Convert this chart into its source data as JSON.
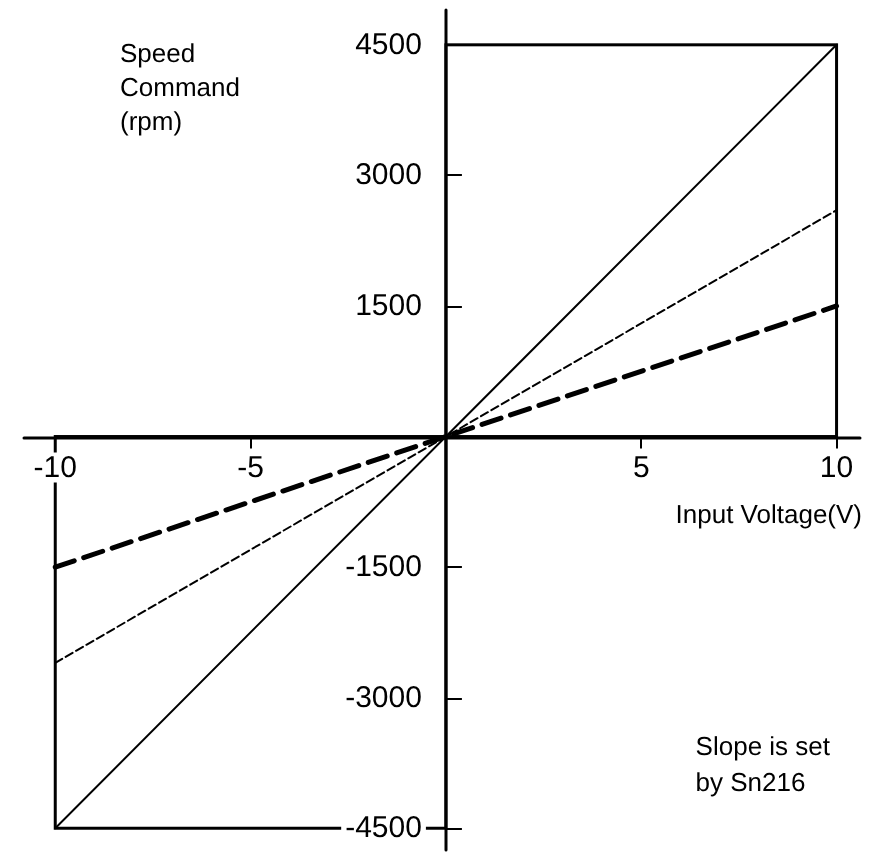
{
  "chart_data": {
    "type": "line",
    "xlabel": "Input Voltage(V)",
    "ylabel": "Speed Command (rpm)",
    "annotations": [
      "Slope is set by Sn216"
    ],
    "x": [
      -10,
      10
    ],
    "series": [
      {
        "color": "#000000",
        "values": [
          -4500,
          4500
        ],
        "line_style": "solid"
      },
      {
        "color": "#000000",
        "values": [
          -2600,
          2600
        ],
        "line_style": "dashed"
      },
      {
        "color": "#000000",
        "values": [
          -1500,
          1500
        ],
        "line_style": "dashed"
      }
    ],
    "xlim": [
      -10.8,
      10.6
    ],
    "ylim": [
      -4750,
      4900
    ],
    "xticks": [
      -10,
      -5,
      5,
      10
    ],
    "yticks": [
      -4500,
      -3000,
      -1500,
      1500,
      3000,
      4500
    ],
    "marker": "none",
    "grid": false
  }
}
